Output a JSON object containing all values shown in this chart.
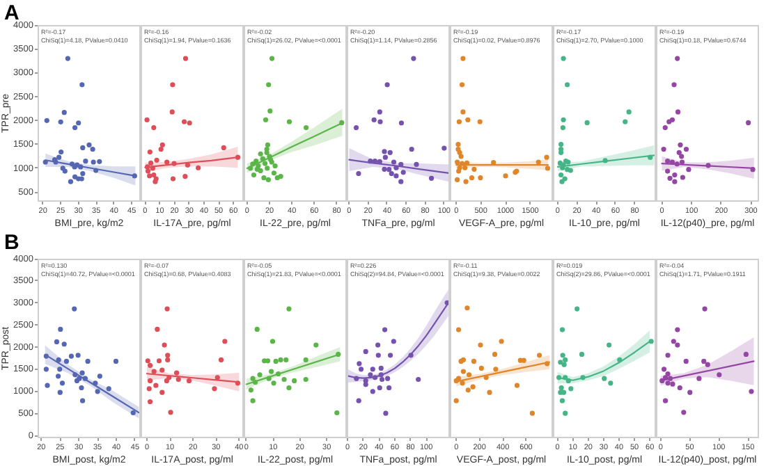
{
  "chart_data": [
    {
      "type": "scatter",
      "title": "A",
      "xlabel": "BMI_pre, kg/m2",
      "ylabel": "TPR_pre",
      "marker": "circle",
      "xlim": [
        18.5,
        47.5
      ],
      "xticks": [
        20,
        25,
        30,
        35,
        40,
        45
      ],
      "ylim": [
        300,
        4000
      ],
      "yticks": [
        500,
        1000,
        1500,
        2000,
        2500,
        3000,
        3500,
        4000
      ],
      "annotations": [
        "R²=-0.17",
        "ChiSq(1)=4.18, PValue=0.0410"
      ],
      "series": [
        {
          "color": "#5566b3",
          "x": [
            27.0,
            31.0,
            21.1,
            25.0,
            26.0,
            30.0,
            29.0,
            33.0,
            31.2,
            34.0,
            25.1,
            23.3,
            24.5,
            20.7,
            23.6,
            32.0,
            34.2,
            35.9,
            25.6,
            26.2,
            28.2,
            29.6,
            28.9,
            30.6,
            31.2,
            29.0,
            30.0,
            30.9,
            27.8,
            34.9,
            45.8
          ],
          "values": [
            3300,
            2750,
            2000,
            1970,
            2170,
            1950,
            1850,
            1490,
            1430,
            1400,
            1340,
            1180,
            1230,
            1130,
            1130,
            1150,
            1130,
            1140,
            1000,
            940,
            1090,
            1070,
            1030,
            1030,
            890,
            820,
            780,
            780,
            720,
            955,
            840
          ]
        },
        {
          "type": "line",
          "marker": "none",
          "color": "#5566b3",
          "x": [
            20.7,
            27,
            33,
            40,
            46
          ],
          "values": [
            1170,
            1088,
            1010,
            919,
            840
          ],
          "lower": [
            1030,
            1028,
            950,
            800,
            640
          ],
          "upper": [
            1310,
            1148,
            1070,
            1040,
            1040
          ]
        }
      ]
    },
    {
      "type": "scatter",
      "xlabel": "IL-17A_pre, pg/ml",
      "marker": "circle",
      "tick_labels": "x",
      "xlim": [
        -3,
        67
      ],
      "xticks": [
        0,
        10,
        20,
        30,
        40,
        50,
        60
      ],
      "ylim": [
        300,
        4000
      ],
      "annotations": [
        "R²=-0.16",
        "ChiSq(1)=1.94, PValue=0.1636"
      ],
      "series": [
        {
          "color": "#de4e58",
          "x": [
            27.5,
            18.7,
            1.3,
            18.4,
            26.6,
            30.2,
            5.9,
            11.8,
            10.8,
            3.3,
            53.4,
            63,
            7.9,
            14.8,
            19.7,
            3.9,
            1.6,
            28.9,
            36.1,
            5.2,
            2,
            5.9,
            27.2,
            19,
            7.5,
            3,
            6.9
          ],
          "values": [
            3300,
            2750,
            2015,
            2180,
            1975,
            1950,
            1850,
            1490,
            1400,
            1340,
            1430,
            1230,
            1170,
            1130,
            1100,
            1110,
            1030,
            1070,
            1010,
            1000,
            940,
            860,
            830,
            780,
            780,
            840,
            720
          ]
        },
        {
          "type": "line",
          "marker": "none",
          "color": "#de4e58",
          "x": [
            0,
            15,
            30,
            45,
            63
          ],
          "values": [
            1020,
            1070,
            1120,
            1160,
            1230
          ],
          "lower": [
            920,
            1010,
            1040,
            1040,
            1010
          ],
          "upper": [
            1120,
            1130,
            1200,
            1290,
            1450
          ]
        }
      ]
    },
    {
      "type": "scatter",
      "xlabel": "IL-22_pre, pg/ml",
      "marker": "circle",
      "tick_labels": "x",
      "xlim": [
        -3,
        89
      ],
      "xticks": [
        0,
        20,
        40,
        60,
        80
      ],
      "ylim": [
        300,
        4000
      ],
      "annotations": [
        "R²=-0.02",
        "ChiSq(1)=26.02, PValue=<0.0001"
      ],
      "series": [
        {
          "color": "#5cb548",
          "x": [
            22.2,
            19.2,
            20.5,
            16.6,
            37.7,
            52.7,
            84.5,
            18.4,
            17.6,
            17.6,
            3,
            5,
            8,
            10,
            12,
            14,
            16,
            18,
            20,
            22,
            24,
            25,
            6,
            15,
            19,
            27,
            30,
            12,
            9,
            21
          ],
          "values": [
            3300,
            2750,
            2200,
            2015,
            1975,
            1850,
            1955,
            1490,
            1400,
            1330,
            1000,
            1090,
            1150,
            1050,
            950,
            1200,
            1100,
            1000,
            1250,
            1130,
            900,
            1050,
            860,
            800,
            760,
            800,
            830,
            1300,
            980,
            1180
          ]
        },
        {
          "type": "line",
          "marker": "none",
          "color": "#5cb548",
          "x": [
            0,
            20,
            40,
            60,
            85
          ],
          "values": [
            1000,
            1220,
            1450,
            1670,
            1950
          ],
          "lower": [
            900,
            1160,
            1340,
            1480,
            1680
          ],
          "upper": [
            1100,
            1280,
            1560,
            1860,
            2250
          ]
        }
      ]
    },
    {
      "type": "scatter",
      "xlabel": "TNFa_pre, pg/ml",
      "marker": "circle",
      "tick_labels": "x",
      "xlim": [
        -2.5,
        106
      ],
      "xticks": [
        0,
        20,
        40,
        60,
        80,
        100
      ],
      "ylim": [
        300,
        4000
      ],
      "annotations": [
        "R²=-0.20",
        "ChiSq(1)=1.14, PValue=0.2856"
      ],
      "series": [
        {
          "color": "#7552ad",
          "x": [
            67.8,
            40.1,
            32.2,
            26.2,
            32.7,
            55,
            7.4,
            100,
            65.8,
            37.1,
            43.1,
            22.3,
            27.2,
            32.2,
            38.1,
            47,
            54.5,
            70.8,
            9.9,
            37.1,
            42,
            49.5,
            57,
            49.5,
            54.5,
            86.6,
            44.6
          ],
          "values": [
            3300,
            2750,
            2180,
            2015,
            1975,
            1950,
            1850,
            1420,
            1400,
            1350,
            1330,
            1150,
            1150,
            1140,
            1230,
            1130,
            1080,
            1080,
            890,
            980,
            975,
            1010,
            915,
            840,
            720,
            790,
            890
          ]
        },
        {
          "type": "line",
          "marker": "none",
          "color": "#7552ad",
          "x": [
            0,
            25,
            50,
            75,
            105
          ],
          "values": [
            1180,
            1110,
            1050,
            980,
            900
          ],
          "lower": [
            940,
            1030,
            990,
            860,
            720
          ],
          "upper": [
            1420,
            1190,
            1110,
            1100,
            1080
          ]
        }
      ]
    },
    {
      "type": "scatter",
      "xlabel": "VEGF-A_pre, pg/ml",
      "marker": "circle",
      "tick_labels": "x",
      "xlim": [
        -130,
        1960
      ],
      "xticks": [
        0,
        500,
        1000,
        1500
      ],
      "ylim": [
        300,
        4000
      ],
      "annotations": [
        "R²=-0.19",
        "ChiSq(1)=0.02, PValue=0.8976"
      ],
      "series": [
        {
          "color": "#e0862a",
          "x": [
            137,
            118,
            137,
            235,
            59,
            480,
            39,
            39,
            69,
            98,
            20,
            118,
            216,
            755,
            69,
            176,
            363,
            49,
            314,
            490,
            20,
            196,
            1000,
            1196,
            1667,
            1833,
            1853,
            1225
          ],
          "values": [
            3300,
            2750,
            2180,
            2015,
            1975,
            1975,
            1500,
            1400,
            1330,
            1250,
            1130,
            1100,
            1110,
            1120,
            1010,
            1010,
            980,
            940,
            800,
            800,
            760,
            720,
            840,
            915,
            1130,
            1230,
            1000,
            940
          ]
        },
        {
          "type": "line",
          "marker": "none",
          "color": "#e0862a",
          "x": [
            0,
            500,
            1000,
            1500,
            1860
          ],
          "values": [
            1070,
            1070,
            1070,
            1070,
            1070
          ],
          "lower": [
            1000,
            1030,
            1020,
            990,
            960
          ],
          "upper": [
            1140,
            1110,
            1120,
            1150,
            1180
          ]
        }
      ]
    },
    {
      "type": "scatter",
      "xlabel": "IL-10_pre, pg/ml",
      "marker": "circle",
      "tick_labels": "x",
      "xlim": [
        -5,
        102
      ],
      "xticks": [
        0,
        20,
        40,
        60,
        80
      ],
      "ylim": [
        300,
        4000
      ],
      "annotations": [
        "R²=-0.17",
        "ChiSq(1)=2.70, PValue=0.1000"
      ],
      "series": [
        {
          "color": "#45b487",
          "x": [
            5.9,
            9.9,
            73.9,
            5.9,
            5.4,
            30.5,
            70,
            3.4,
            3.4,
            3.4,
            8.4,
            2.5,
            5.9,
            10.8,
            4.9,
            9.9,
            3.4,
            7.4,
            4.4,
            13.3,
            49.3,
            96
          ],
          "values": [
            3300,
            2750,
            2180,
            2015,
            1850,
            1955,
            1975,
            1500,
            1400,
            1330,
            1150,
            1110,
            1070,
            1130,
            1010,
            975,
            860,
            780,
            720,
            955,
            1160,
            1230
          ]
        },
        {
          "type": "line",
          "marker": "none",
          "color": "#45b487",
          "x": [
            0,
            25,
            50,
            75,
            100
          ],
          "values": [
            1030,
            1090,
            1150,
            1210,
            1270
          ],
          "lower": [
            940,
            1040,
            1050,
            1060,
            1060
          ],
          "upper": [
            1120,
            1140,
            1250,
            1360,
            1480
          ]
        }
      ]
    },
    {
      "type": "scatter",
      "xlabel": "IL-12(p40)_pre, pg/ml",
      "marker": "circle",
      "tick_labels": "x",
      "xlim": [
        -20,
        327
      ],
      "xticks": [
        0,
        100,
        200,
        300
      ],
      "ylim": [
        300,
        4000
      ],
      "annotations": [
        "R²=-0.19",
        "ChiSq(1)=0.18, PValue=0.6744"
      ],
      "series": [
        {
          "color": "#9446a3",
          "x": [
            52,
            41,
            54,
            35,
            24,
            11,
            291,
            6,
            62,
            82,
            58,
            66,
            19,
            35,
            51,
            68,
            156,
            90,
            19,
            43,
            27,
            70,
            43,
            306
          ],
          "values": [
            3300,
            2750,
            2180,
            2015,
            1975,
            1850,
            1955,
            1400,
            1490,
            1400,
            1330,
            1250,
            1150,
            1130,
            1090,
            1130,
            1060,
            975,
            940,
            860,
            790,
            810,
            720,
            975
          ]
        },
        {
          "type": "line",
          "marker": "none",
          "color": "#9446a3",
          "x": [
            0,
            75,
            150,
            225,
            310
          ],
          "values": [
            1100,
            1076,
            1052,
            1028,
            1000
          ],
          "lower": [
            950,
            1030,
            980,
            900,
            780
          ],
          "upper": [
            1250,
            1122,
            1124,
            1156,
            1220
          ]
        }
      ]
    },
    {
      "type": "scatter",
      "title": "B",
      "xlabel": "BMI_post, kg/m2",
      "ylabel": "TPR_post",
      "marker": "circle",
      "xlim": [
        19,
        46.5
      ],
      "xticks": [
        20,
        25,
        30,
        35,
        40,
        45
      ],
      "ylim": [
        -60,
        4000
      ],
      "yticks": [
        0,
        500,
        1000,
        1500,
        2000,
        2500,
        3000,
        3500,
        4000
      ],
      "annotations": [
        "R²=0.130",
        "ChiSq(1)=40.72, PValue=<0.0001"
      ],
      "series": [
        {
          "color": "#5566b3",
          "x": [
            28.8,
            25.1,
            24.1,
            26.1,
            21.3,
            24.6,
            26.7,
            28.0,
            29.8,
            32.4,
            39.9,
            21.3,
            24.9,
            29.0,
            24.5,
            30.9,
            25.6,
            35.6,
            30.1,
            31.7,
            21.6,
            29.5,
            34.4,
            25.0,
            35,
            38,
            31.0,
            30.7,
            44.5
          ],
          "values": [
            2866,
            2404,
            2121,
            2068,
            1795,
            1711,
            1680,
            1795,
            1816,
            1680,
            1680,
            1501,
            1501,
            1375,
            1344,
            1417,
            1186,
            1344,
            1291,
            1291,
            1134,
            1239,
            1186,
            976,
            997,
            1060,
            787,
            1081,
            514
          ]
        },
        {
          "type": "line",
          "marker": "none",
          "color": "#5566b3",
          "x": [
            21,
            27,
            33,
            39,
            46
          ],
          "values": [
            1830,
            1516,
            1202,
            888,
            520
          ],
          "lower": [
            1620,
            1420,
            1130,
            760,
            390
          ],
          "upper": [
            2040,
            1612,
            1274,
            1016,
            650
          ]
        }
      ]
    },
    {
      "type": "scatter",
      "xlabel": "IL-17A_post, pg/ml",
      "marker": "circle",
      "tick_labels": "x",
      "xlim": [
        -2.7,
        42
      ],
      "xticks": [
        0,
        10,
        20,
        30,
        40
      ],
      "ylim": [
        -60,
        4000
      ],
      "annotations": [
        "R²=-0.07",
        "ChiSq(1)=0.68, PValue=0.4083"
      ],
      "series": [
        {
          "color": "#de4e58",
          "x": [
            8.8,
            4.5,
            7.6,
            33.8,
            9,
            9,
            5.3,
            0.4,
            1.4,
            32.2,
            3.1,
            6.6,
            12.9,
            9.6,
            13.7,
            18.3,
            39.4,
            1.4,
            3.9,
            8.6,
            30.6,
            1,
            6.6,
            29.3,
            1.4,
            10.3
          ],
          "values": [
            2866,
            2404,
            2047,
            2131,
            1816,
            1711,
            1690,
            1690,
            1585,
            1711,
            1449,
            1480,
            1417,
            1312,
            1270,
            1239,
            1186,
            1239,
            1134,
            1239,
            1312,
            1060,
            976,
            1060,
            766,
            525
          ]
        },
        {
          "type": "line",
          "marker": "none",
          "color": "#de4e58",
          "x": [
            0,
            10,
            20,
            30,
            40
          ],
          "values": [
            1400,
            1352,
            1305,
            1257,
            1210
          ],
          "lower": [
            1250,
            1300,
            1240,
            1130,
            1000
          ],
          "upper": [
            1550,
            1404,
            1370,
            1384,
            1420
          ]
        }
      ]
    },
    {
      "type": "scatter",
      "xlabel": "IL-22_post, pg/ml",
      "marker": "circle",
      "tick_labels": "x",
      "xlim": [
        -1,
        37.5
      ],
      "xticks": [
        0,
        10,
        20,
        30
      ],
      "ylim": [
        -60,
        4000
      ],
      "annotations": [
        "R²=-0.05",
        "ChiSq(1)=21.83, PValue=<0.0001"
      ],
      "series": [
        {
          "color": "#5cb548",
          "x": [
            4.0,
            9.8,
            6.7,
            8,
            2.4,
            3.3,
            5,
            1.7,
            2.4,
            15.9,
            26,
            14.8,
            12.8,
            22.2,
            11,
            9.3,
            11.9,
            14.1,
            17.9,
            22.2,
            15.9,
            10.2,
            8.4,
            33.8,
            34.3
          ],
          "values": [
            2404,
            2131,
            1690,
            1690,
            1291,
            1207,
            1375,
            1029,
            787,
            2866,
            2047,
            1711,
            1711,
            1711,
            1680,
            1449,
            1396,
            1270,
            1239,
            1270,
            1081,
            1186,
            1291,
            514,
            1837
          ]
        },
        {
          "type": "line",
          "marker": "none",
          "color": "#5cb548",
          "x": [
            0,
            9,
            18,
            27,
            35
          ],
          "values": [
            1160,
            1335,
            1510,
            1685,
            1840
          ],
          "lower": [
            1040,
            1280,
            1440,
            1560,
            1680
          ],
          "upper": [
            1280,
            1390,
            1580,
            1810,
            2000
          ]
        }
      ]
    },
    {
      "type": "scatter",
      "xlabel": "TNFa_post, pg/ml",
      "marker": "circle",
      "tick_labels": "x",
      "xlim": [
        -1,
        130
      ],
      "xticks": [
        0,
        20,
        40,
        60,
        80,
        100
      ],
      "ylim": [
        -60,
        4000
      ],
      "annotations": [
        "R²=0.226",
        "ChiSq(2)=94.84, PValue=<0.0001"
      ],
      "series": [
        {
          "color": "#7552ad",
          "x": [
            47.3,
            38.5,
            58.6,
            23.1,
            14.8,
            17.2,
            39.1,
            54.4,
            80.5,
            32,
            42.6,
            29,
            42.6,
            11.2,
            23.1,
            34.9,
            43.8,
            50.9,
            23.1,
            40.8,
            52.7,
            89.9,
            32,
            14.2,
            48.5,
            126.6
          ],
          "values": [
            2394,
            2047,
            2131,
            1900,
            1627,
            1501,
            1816,
            1816,
            1816,
            1501,
            1522,
            1375,
            1375,
            1291,
            1239,
            1312,
            1270,
            1291,
            1155,
            1081,
            1081,
            1270,
            997,
            787,
            504,
            3003
          ]
        },
        {
          "type": "line",
          "marker": "none",
          "color": "#7552ad",
          "x": [
            0,
            10,
            20,
            30,
            40,
            50,
            60,
            70,
            80,
            90,
            100,
            110,
            128
          ],
          "values": [
            1350,
            1310,
            1300,
            1310,
            1350,
            1420,
            1520,
            1660,
            1830,
            2030,
            2260,
            2520,
            3000
          ],
          "lower": [
            1200,
            1210,
            1230,
            1250,
            1290,
            1350,
            1430,
            1550,
            1690,
            1850,
            2040,
            2250,
            2700
          ],
          "upper": [
            1500,
            1410,
            1370,
            1370,
            1410,
            1490,
            1610,
            1770,
            1970,
            2210,
            2480,
            2790,
            3300
          ]
        }
      ]
    },
    {
      "type": "scatter",
      "xlabel": "VEGF-A_post, pg/ml",
      "marker": "circle",
      "tick_labels": "x",
      "xlim": [
        -55,
        830
      ],
      "xticks": [
        0,
        200,
        400,
        600
      ],
      "ylim": [
        -60,
        4000
      ],
      "annotations": [
        "R²=-0.11",
        "ChiSq(1)=9.38, PValue=0.0022"
      ],
      "series": [
        {
          "color": "#e0862a",
          "x": [
            94,
            20,
            208,
            388,
            41,
            61,
            151,
            331,
            216,
            551,
            580,
            714,
            780,
            522,
            653,
            20,
            61,
            110,
            53,
            143,
            102,
            286,
            0,
            257,
            339,
            0
          ],
          "values": [
            2887,
            2394,
            2047,
            2131,
            1680,
            1711,
            1680,
            1837,
            1522,
            1700,
            1700,
            1816,
            1627,
            1134,
            504,
            1291,
            1449,
            1375,
            1186,
            1102,
            1029,
            976,
            787,
            1312,
            1501,
            1239
          ]
        },
        {
          "type": "line",
          "marker": "none",
          "color": "#e0862a",
          "x": [
            0,
            200,
            400,
            600,
            800
          ],
          "values": [
            1220,
            1330,
            1440,
            1550,
            1660
          ],
          "lower": [
            1110,
            1270,
            1370,
            1440,
            1500
          ],
          "upper": [
            1330,
            1390,
            1510,
            1660,
            1820
          ]
        }
      ]
    },
    {
      "type": "scatter",
      "xlabel": "IL-10_post, pg/ml",
      "marker": "circle",
      "tick_labels": "x",
      "xlim": [
        -3,
        64
      ],
      "xticks": [
        0,
        10,
        20,
        30,
        40,
        50,
        60
      ],
      "ylim": [
        -60,
        4000
      ],
      "annotations": [
        "R²=0.019",
        "ChiSq(2)=29.86, PValue=<0.0001"
      ],
      "series": [
        {
          "color": "#45b487",
          "x": [
            12.7,
            3.1,
            33.5,
            15.8,
            3.4,
            5,
            1.9,
            4.3,
            40.4,
            0.9,
            5,
            7.1,
            16.5,
            30.4,
            34.5,
            2.5,
            8.7,
            1.9,
            4,
            3.1,
            5,
            60.9
          ],
          "values": [
            2866,
            2394,
            2047,
            1837,
            1816,
            1711,
            1659,
            1606,
            1711,
            1312,
            1312,
            1239,
            1312,
            1291,
            1186,
            1081,
            1060,
            976,
            976,
            787,
            504,
            2131
          ]
        },
        {
          "type": "line",
          "marker": "none",
          "color": "#45b487",
          "x": [
            0,
            10,
            20,
            30,
            40,
            50,
            60
          ],
          "values": [
            1310,
            1250,
            1330,
            1460,
            1650,
            1880,
            2130
          ],
          "lower": [
            1180,
            1180,
            1250,
            1350,
            1510,
            1690,
            1880
          ],
          "upper": [
            1440,
            1320,
            1410,
            1570,
            1790,
            2070,
            2380
          ]
        }
      ]
    },
    {
      "type": "scatter",
      "xlabel": "IL-12(p40)_post, pg/ml",
      "marker": "circle",
      "tick_labels": "x",
      "xlim": [
        -8,
        169
      ],
      "xticks": [
        0,
        50,
        100,
        150
      ],
      "ylim": [
        -60,
        4000
      ],
      "annotations": [
        "R²=-0.04",
        "ChiSq(1)=1.71, PValue=0.1911"
      ],
      "series": [
        {
          "color": "#9446a3",
          "x": [
            75.8,
            28.9,
            22.3,
            28.9,
            12.4,
            43.7,
            80.8,
            74.2,
            146.7,
            100.6,
            66,
            5.8,
            8.2,
            16.5,
            2.5,
            12.4,
            20.6,
            33,
            50.3,
            155.8,
            8.2,
            39.6,
            12.4
          ],
          "values": [
            2866,
            2394,
            2131,
            2047,
            1816,
            1680,
            1606,
            1680,
            1837,
            1375,
            1291,
            1501,
            1312,
            1291,
            1239,
            1186,
            1165,
            1081,
            976,
            997,
            787,
            525,
            1396
          ]
        },
        {
          "type": "line",
          "marker": "none",
          "color": "#9446a3",
          "x": [
            0,
            40,
            80,
            120,
            160
          ],
          "values": [
            1240,
            1350,
            1460,
            1570,
            1680
          ],
          "lower": [
            1130,
            1290,
            1320,
            1240,
            1140
          ],
          "upper": [
            1350,
            1410,
            1600,
            1900,
            2220
          ]
        }
      ]
    }
  ]
}
